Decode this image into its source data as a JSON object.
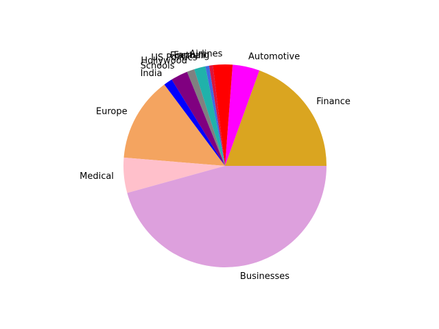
{
  "chart_data": {
    "type": "pie",
    "title": "",
    "start_angle_deg": 0,
    "direction": "counterclockwise",
    "slices": [
      {
        "label": "Finance",
        "value": 19.5,
        "color": "#DAA520"
      },
      {
        "label": "Automotive",
        "value": 4.3,
        "color": "#FF00FF"
      },
      {
        "label": "Airlines",
        "value": 3.1,
        "color": "#FF0000"
      },
      {
        "label": "Farming",
        "value": 0.6,
        "color": "#DC143C"
      },
      {
        "label": "Football",
        "value": 0.6,
        "color": "#4169E1"
      },
      {
        "label": "US Politics",
        "value": 1.8,
        "color": "#20B2AA"
      },
      {
        "label": "Hollywood",
        "value": 1.2,
        "color": "#808080"
      },
      {
        "label": "Schools",
        "value": 2.7,
        "color": "#800080"
      },
      {
        "label": "India",
        "value": 1.4,
        "color": "#0000FF"
      },
      {
        "label": "Europe",
        "value": 13.5,
        "color": "#F4A460"
      },
      {
        "label": "Medical",
        "value": 5.6,
        "color": "#FFC0CB"
      },
      {
        "label": "Businesses",
        "value": 45.7,
        "color": "#DDA0DD"
      }
    ]
  }
}
